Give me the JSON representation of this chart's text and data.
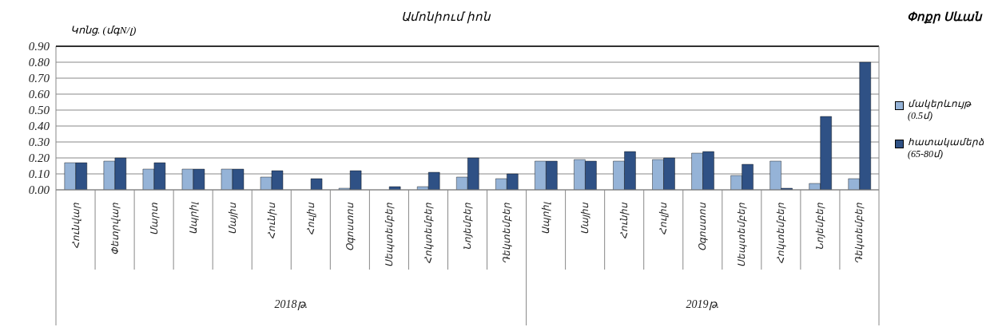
{
  "chart_data": {
    "type": "bar",
    "title": "Ամոնիում իոն",
    "subtitle": "Փոքր Սևան",
    "ylabel": "Կոնց. (մգN/լ)",
    "categories": [
      "Հունվար",
      "Փետրվար",
      "Մարտ",
      "Ապրիլ",
      "Մայիս",
      "Հունիս",
      "Հուլիս",
      "Օգոստոս",
      "Սեպտեմբեր",
      "Հոկտեմբեր",
      "Նոյեմբեր",
      "Դեկտեմբեր",
      "Ապրիլ",
      "Մայիս",
      "Հունիս",
      "Հուլիս",
      "Օգոստոս",
      "Սեպտեմբեր",
      "Հոկտեմբեր",
      "Նոյեմբեր",
      "Դեկտեմբեր"
    ],
    "series": [
      {
        "name": "մակերևույթ (0.5մ)",
        "color": "#95b3d7",
        "values": [
          0.17,
          0.18,
          0.13,
          0.13,
          0.13,
          0.08,
          null,
          0.01,
          null,
          0.02,
          0.08,
          0.07,
          0.18,
          0.19,
          0.18,
          0.19,
          0.23,
          0.09,
          0.18,
          0.04,
          0.07
        ]
      },
      {
        "name": "հատակամերձ (65-80մ)",
        "color": "#2f5185",
        "values": [
          0.17,
          0.2,
          0.17,
          0.13,
          0.13,
          0.12,
          0.07,
          0.12,
          0.02,
          0.11,
          0.2,
          0.1,
          0.18,
          0.18,
          0.24,
          0.2,
          0.24,
          0.16,
          0.01,
          0.46,
          0.8
        ]
      }
    ],
    "annotations": [
      "2018թ.",
      "2019թ."
    ],
    "ylim": [
      0,
      0.9
    ],
    "yticks": [
      {
        "value": 0,
        "label": "0.00"
      },
      {
        "value": 0.1,
        "label": "0.10"
      },
      {
        "value": 0.2,
        "label": "0.20"
      },
      {
        "value": 0.3,
        "label": "0.30"
      },
      {
        "value": 0.4,
        "label": "0.40"
      },
      {
        "value": 0.5,
        "label": "0.50"
      },
      {
        "value": 0.6,
        "label": "0.60"
      },
      {
        "value": 0.7,
        "label": "0.70"
      },
      {
        "value": 0.8,
        "label": "0.80"
      },
      {
        "value": 0.9,
        "label": "0.90"
      }
    ],
    "grid": "y",
    "legend": "right"
  }
}
